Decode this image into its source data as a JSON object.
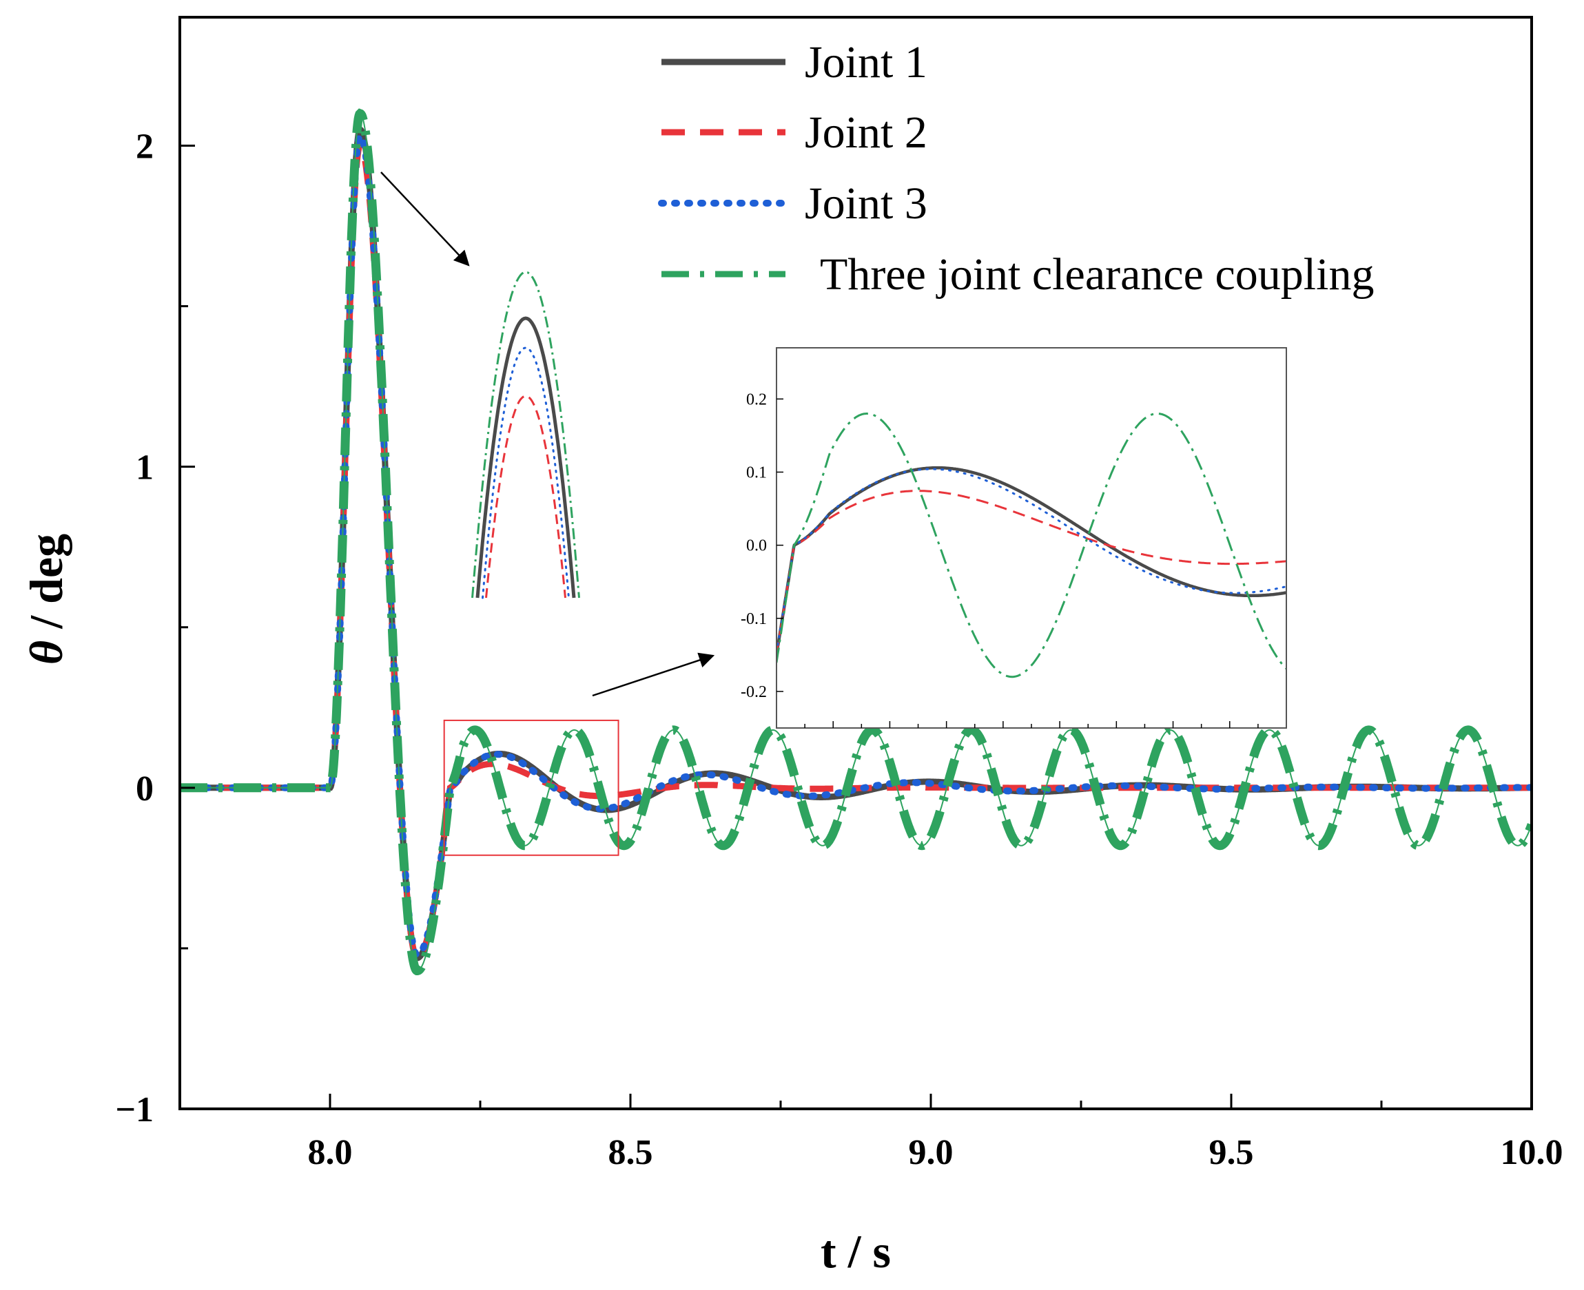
{
  "chart_data": {
    "type": "line",
    "xlabel": "t / s",
    "ylabel_symbol": "θ",
    "ylabel_unit": " / deg",
    "xlim": [
      7.75,
      10.0
    ],
    "ylim": [
      -1,
      2.4
    ],
    "xticks": [
      8.0,
      8.5,
      9.0,
      9.5,
      10.0
    ],
    "xtick_labels": [
      "8.0",
      "8.5",
      "9.0",
      "9.5",
      "10.0"
    ],
    "yticks": [
      -1,
      0,
      1,
      2
    ],
    "ytick_labels": [
      "−1",
      "0",
      "1",
      "2"
    ],
    "legend_position": "top-right",
    "series": [
      {
        "name": "Joint 1",
        "color": "#4a4a4a",
        "style": "solid",
        "peak": 2.05,
        "trough": -0.53,
        "osc_amp": 0.13,
        "osc_freq_hz": 2.8,
        "decay": 2.4
      },
      {
        "name": "Joint 2",
        "color": "#e8343a",
        "style": "dashed",
        "peak": 2.0,
        "trough": -0.53,
        "osc_amp": 0.12,
        "osc_freq_hz": 2.8,
        "decay": 6.0
      },
      {
        "name": "Joint 3",
        "color": "#1e5fd6",
        "style": "dotted",
        "peak": 2.03,
        "trough": -0.52,
        "osc_amp": 0.13,
        "osc_freq_hz": 2.9,
        "decay": 2.7
      },
      {
        "name": "Three joint clearance coupling",
        "color": "#2ea35f",
        "style": "dashdot",
        "peak": 2.1,
        "trough": -0.57,
        "osc_amp": 0.18,
        "osc_freq_hz": 6.05,
        "decay": 0.0
      }
    ],
    "peak_zoom": {
      "annotation": "zoom of peak near t = 8.05 s"
    },
    "inset": {
      "region_xlim": [
        8.19,
        8.48
      ],
      "region_ylim": [
        -0.21,
        0.21
      ],
      "ylim": [
        -0.25,
        0.27
      ],
      "yticks": [
        -0.2,
        -0.1,
        0.0,
        0.1,
        0.2
      ],
      "ytick_labels": [
        "-0.2",
        "-0.1",
        "0.0",
        "0.1",
        "0.2"
      ]
    }
  }
}
